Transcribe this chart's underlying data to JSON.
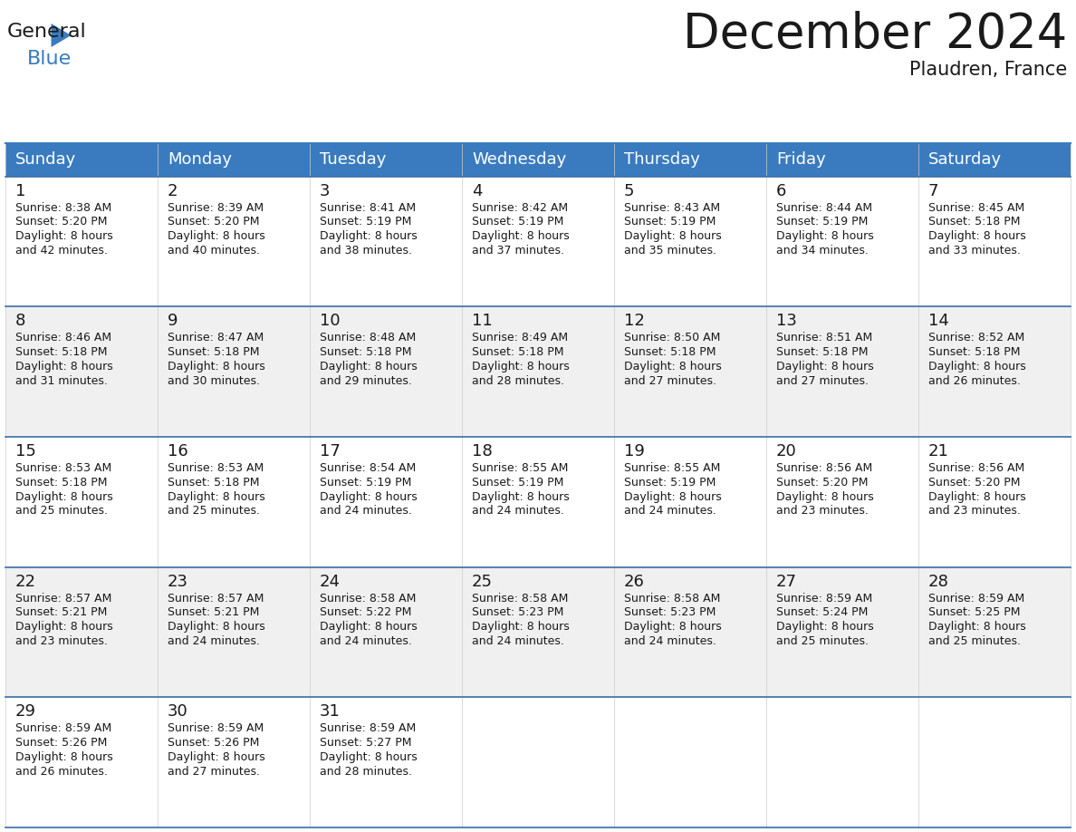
{
  "title": "December 2024",
  "subtitle": "Plaudren, France",
  "header_color": "#3a7bbf",
  "header_text_color": "#ffffff",
  "bg_color": "#ffffff",
  "cell_bg_white": "#ffffff",
  "cell_bg_gray": "#f0f0f0",
  "separator_color": "#3a6ea5",
  "day_headers": [
    "Sunday",
    "Monday",
    "Tuesday",
    "Wednesday",
    "Thursday",
    "Friday",
    "Saturday"
  ],
  "title_fontsize": 38,
  "subtitle_fontsize": 15,
  "header_fontsize": 13,
  "day_number_fontsize": 13,
  "cell_text_fontsize": 9,
  "logo_general_fontsize": 16,
  "logo_blue_fontsize": 16,
  "days": [
    {
      "date": 1,
      "col": 0,
      "row": 0,
      "sunrise": "8:38 AM",
      "sunset": "5:20 PM",
      "daylight_hours": 8,
      "daylight_minutes": 42
    },
    {
      "date": 2,
      "col": 1,
      "row": 0,
      "sunrise": "8:39 AM",
      "sunset": "5:20 PM",
      "daylight_hours": 8,
      "daylight_minutes": 40
    },
    {
      "date": 3,
      "col": 2,
      "row": 0,
      "sunrise": "8:41 AM",
      "sunset": "5:19 PM",
      "daylight_hours": 8,
      "daylight_minutes": 38
    },
    {
      "date": 4,
      "col": 3,
      "row": 0,
      "sunrise": "8:42 AM",
      "sunset": "5:19 PM",
      "daylight_hours": 8,
      "daylight_minutes": 37
    },
    {
      "date": 5,
      "col": 4,
      "row": 0,
      "sunrise": "8:43 AM",
      "sunset": "5:19 PM",
      "daylight_hours": 8,
      "daylight_minutes": 35
    },
    {
      "date": 6,
      "col": 5,
      "row": 0,
      "sunrise": "8:44 AM",
      "sunset": "5:19 PM",
      "daylight_hours": 8,
      "daylight_minutes": 34
    },
    {
      "date": 7,
      "col": 6,
      "row": 0,
      "sunrise": "8:45 AM",
      "sunset": "5:18 PM",
      "daylight_hours": 8,
      "daylight_minutes": 33
    },
    {
      "date": 8,
      "col": 0,
      "row": 1,
      "sunrise": "8:46 AM",
      "sunset": "5:18 PM",
      "daylight_hours": 8,
      "daylight_minutes": 31
    },
    {
      "date": 9,
      "col": 1,
      "row": 1,
      "sunrise": "8:47 AM",
      "sunset": "5:18 PM",
      "daylight_hours": 8,
      "daylight_minutes": 30
    },
    {
      "date": 10,
      "col": 2,
      "row": 1,
      "sunrise": "8:48 AM",
      "sunset": "5:18 PM",
      "daylight_hours": 8,
      "daylight_minutes": 29
    },
    {
      "date": 11,
      "col": 3,
      "row": 1,
      "sunrise": "8:49 AM",
      "sunset": "5:18 PM",
      "daylight_hours": 8,
      "daylight_minutes": 28
    },
    {
      "date": 12,
      "col": 4,
      "row": 1,
      "sunrise": "8:50 AM",
      "sunset": "5:18 PM",
      "daylight_hours": 8,
      "daylight_minutes": 27
    },
    {
      "date": 13,
      "col": 5,
      "row": 1,
      "sunrise": "8:51 AM",
      "sunset": "5:18 PM",
      "daylight_hours": 8,
      "daylight_minutes": 27
    },
    {
      "date": 14,
      "col": 6,
      "row": 1,
      "sunrise": "8:52 AM",
      "sunset": "5:18 PM",
      "daylight_hours": 8,
      "daylight_minutes": 26
    },
    {
      "date": 15,
      "col": 0,
      "row": 2,
      "sunrise": "8:53 AM",
      "sunset": "5:18 PM",
      "daylight_hours": 8,
      "daylight_minutes": 25
    },
    {
      "date": 16,
      "col": 1,
      "row": 2,
      "sunrise": "8:53 AM",
      "sunset": "5:18 PM",
      "daylight_hours": 8,
      "daylight_minutes": 25
    },
    {
      "date": 17,
      "col": 2,
      "row": 2,
      "sunrise": "8:54 AM",
      "sunset": "5:19 PM",
      "daylight_hours": 8,
      "daylight_minutes": 24
    },
    {
      "date": 18,
      "col": 3,
      "row": 2,
      "sunrise": "8:55 AM",
      "sunset": "5:19 PM",
      "daylight_hours": 8,
      "daylight_minutes": 24
    },
    {
      "date": 19,
      "col": 4,
      "row": 2,
      "sunrise": "8:55 AM",
      "sunset": "5:19 PM",
      "daylight_hours": 8,
      "daylight_minutes": 24
    },
    {
      "date": 20,
      "col": 5,
      "row": 2,
      "sunrise": "8:56 AM",
      "sunset": "5:20 PM",
      "daylight_hours": 8,
      "daylight_minutes": 23
    },
    {
      "date": 21,
      "col": 6,
      "row": 2,
      "sunrise": "8:56 AM",
      "sunset": "5:20 PM",
      "daylight_hours": 8,
      "daylight_minutes": 23
    },
    {
      "date": 22,
      "col": 0,
      "row": 3,
      "sunrise": "8:57 AM",
      "sunset": "5:21 PM",
      "daylight_hours": 8,
      "daylight_minutes": 23
    },
    {
      "date": 23,
      "col": 1,
      "row": 3,
      "sunrise": "8:57 AM",
      "sunset": "5:21 PM",
      "daylight_hours": 8,
      "daylight_minutes": 24
    },
    {
      "date": 24,
      "col": 2,
      "row": 3,
      "sunrise": "8:58 AM",
      "sunset": "5:22 PM",
      "daylight_hours": 8,
      "daylight_minutes": 24
    },
    {
      "date": 25,
      "col": 3,
      "row": 3,
      "sunrise": "8:58 AM",
      "sunset": "5:23 PM",
      "daylight_hours": 8,
      "daylight_minutes": 24
    },
    {
      "date": 26,
      "col": 4,
      "row": 3,
      "sunrise": "8:58 AM",
      "sunset": "5:23 PM",
      "daylight_hours": 8,
      "daylight_minutes": 24
    },
    {
      "date": 27,
      "col": 5,
      "row": 3,
      "sunrise": "8:59 AM",
      "sunset": "5:24 PM",
      "daylight_hours": 8,
      "daylight_minutes": 25
    },
    {
      "date": 28,
      "col": 6,
      "row": 3,
      "sunrise": "8:59 AM",
      "sunset": "5:25 PM",
      "daylight_hours": 8,
      "daylight_minutes": 25
    },
    {
      "date": 29,
      "col": 0,
      "row": 4,
      "sunrise": "8:59 AM",
      "sunset": "5:26 PM",
      "daylight_hours": 8,
      "daylight_minutes": 26
    },
    {
      "date": 30,
      "col": 1,
      "row": 4,
      "sunrise": "8:59 AM",
      "sunset": "5:26 PM",
      "daylight_hours": 8,
      "daylight_minutes": 27
    },
    {
      "date": 31,
      "col": 2,
      "row": 4,
      "sunrise": "8:59 AM",
      "sunset": "5:27 PM",
      "daylight_hours": 8,
      "daylight_minutes": 28
    }
  ]
}
